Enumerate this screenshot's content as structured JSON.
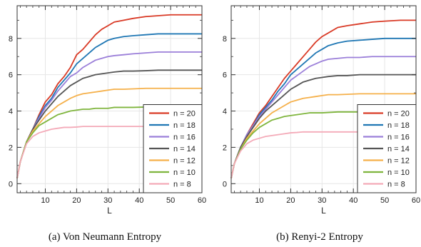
{
  "chart_data": [
    {
      "type": "line",
      "caption": "(a) Von Neumann Entropy",
      "xlabel": "L",
      "ylabel": "",
      "xlim": [
        1,
        60
      ],
      "ylim": [
        -0.5,
        9.8
      ],
      "xticks": [
        10,
        20,
        30,
        40,
        50,
        60
      ],
      "yticks": [
        0,
        2,
        4,
        6,
        8
      ],
      "grid": true,
      "legend_position": "bottom-right",
      "series": [
        {
          "name": "n = 20",
          "color": "#d93a26",
          "x": [
            1,
            2,
            4,
            6,
            8,
            10,
            12,
            14,
            16,
            18,
            20,
            22,
            24,
            26,
            28,
            30,
            32,
            35,
            38,
            42,
            46,
            50,
            55,
            60
          ],
          "y": [
            0.3,
            1.2,
            2.3,
            3.0,
            3.8,
            4.5,
            4.9,
            5.5,
            5.9,
            6.4,
            7.1,
            7.4,
            7.8,
            8.2,
            8.5,
            8.7,
            8.9,
            9.0,
            9.1,
            9.2,
            9.25,
            9.3,
            9.3,
            9.3
          ]
        },
        {
          "name": "n = 18",
          "color": "#1f77b4",
          "x": [
            1,
            2,
            4,
            6,
            8,
            10,
            12,
            14,
            16,
            18,
            20,
            22,
            24,
            26,
            28,
            30,
            32,
            35,
            38,
            42,
            46,
            50,
            55,
            60
          ],
          "y": [
            0.3,
            1.2,
            2.3,
            3.0,
            3.7,
            4.3,
            4.7,
            5.3,
            5.7,
            6.1,
            6.6,
            6.9,
            7.2,
            7.5,
            7.7,
            7.9,
            8.0,
            8.1,
            8.15,
            8.2,
            8.25,
            8.25,
            8.25,
            8.25
          ]
        },
        {
          "name": "n = 16",
          "color": "#9b7fd9",
          "x": [
            1,
            2,
            4,
            6,
            8,
            10,
            12,
            14,
            16,
            18,
            20,
            22,
            24,
            26,
            28,
            30,
            32,
            35,
            38,
            42,
            46,
            50,
            55,
            60
          ],
          "y": [
            0.3,
            1.2,
            2.3,
            3.0,
            3.6,
            4.2,
            4.6,
            5.1,
            5.5,
            5.9,
            6.1,
            6.4,
            6.6,
            6.8,
            6.9,
            7.0,
            7.05,
            7.1,
            7.15,
            7.2,
            7.25,
            7.25,
            7.25,
            7.25
          ]
        },
        {
          "name": "n = 14",
          "color": "#555555",
          "x": [
            1,
            2,
            4,
            6,
            8,
            10,
            12,
            14,
            16,
            18,
            20,
            22,
            24,
            26,
            28,
            30,
            32,
            35,
            38,
            42,
            46,
            50,
            55,
            60
          ],
          "y": [
            0.3,
            1.2,
            2.3,
            3.0,
            3.5,
            4.0,
            4.4,
            4.8,
            5.1,
            5.4,
            5.6,
            5.8,
            5.9,
            6.0,
            6.05,
            6.1,
            6.15,
            6.2,
            6.2,
            6.22,
            6.25,
            6.25,
            6.25,
            6.25
          ]
        },
        {
          "name": "n = 12",
          "color": "#f5b04a",
          "x": [
            1,
            2,
            4,
            6,
            8,
            10,
            12,
            14,
            16,
            18,
            20,
            22,
            24,
            26,
            28,
            30,
            32,
            35,
            38,
            42,
            46,
            50,
            55,
            60
          ],
          "y": [
            0.3,
            1.2,
            2.3,
            2.9,
            3.3,
            3.7,
            4.0,
            4.3,
            4.5,
            4.7,
            4.85,
            4.95,
            5.0,
            5.05,
            5.1,
            5.15,
            5.2,
            5.2,
            5.22,
            5.25,
            5.25,
            5.25,
            5.25,
            5.25
          ]
        },
        {
          "name": "n = 10",
          "color": "#7fb53d",
          "x": [
            1,
            2,
            4,
            6,
            8,
            10,
            12,
            14,
            16,
            18,
            20,
            22,
            24,
            26,
            28,
            30,
            32,
            35,
            38,
            42,
            46,
            50,
            55,
            60
          ],
          "y": [
            0.3,
            1.2,
            2.3,
            2.8,
            3.2,
            3.4,
            3.6,
            3.8,
            3.9,
            4.0,
            4.05,
            4.1,
            4.1,
            4.15,
            4.15,
            4.15,
            4.2,
            4.2,
            4.2,
            4.22,
            4.22,
            4.22,
            4.22,
            4.22
          ]
        },
        {
          "name": "n = 8",
          "color": "#f4aab8",
          "x": [
            1,
            2,
            4,
            6,
            8,
            10,
            12,
            14,
            16,
            18,
            20,
            22,
            24,
            26,
            28,
            30,
            32,
            35,
            38,
            42,
            46,
            50,
            55,
            60
          ],
          "y": [
            0.3,
            1.2,
            2.2,
            2.6,
            2.8,
            2.9,
            3.0,
            3.05,
            3.1,
            3.1,
            3.12,
            3.15,
            3.15,
            3.15,
            3.15,
            3.15,
            3.15,
            3.15,
            3.15,
            3.15,
            3.15,
            3.15,
            3.15,
            3.15
          ]
        }
      ]
    },
    {
      "type": "line",
      "caption": "(b) Renyi-2 Entropy",
      "xlabel": "L",
      "ylabel": "",
      "xlim": [
        1,
        60
      ],
      "ylim": [
        -0.5,
        9.8
      ],
      "xticks": [
        10,
        20,
        30,
        40,
        50,
        60
      ],
      "yticks": [
        0,
        2,
        4,
        6,
        8
      ],
      "grid": true,
      "legend_position": "bottom-right",
      "series": [
        {
          "name": "n = 20",
          "color": "#d93a26",
          "x": [
            1,
            2,
            4,
            6,
            8,
            10,
            12,
            14,
            16,
            18,
            20,
            22,
            24,
            26,
            28,
            30,
            32,
            35,
            38,
            42,
            46,
            50,
            55,
            60
          ],
          "y": [
            0.3,
            1.1,
            2.0,
            2.7,
            3.3,
            3.9,
            4.3,
            4.8,
            5.3,
            5.8,
            6.2,
            6.6,
            7.0,
            7.4,
            7.8,
            8.1,
            8.3,
            8.6,
            8.7,
            8.8,
            8.9,
            8.95,
            9.0,
            9.0
          ]
        },
        {
          "name": "n = 18",
          "color": "#1f77b4",
          "x": [
            1,
            2,
            4,
            6,
            8,
            10,
            12,
            14,
            16,
            18,
            20,
            22,
            24,
            26,
            28,
            30,
            32,
            35,
            38,
            42,
            46,
            50,
            55,
            60
          ],
          "y": [
            0.3,
            1.1,
            2.0,
            2.7,
            3.2,
            3.8,
            4.2,
            4.6,
            5.1,
            5.5,
            6.0,
            6.3,
            6.6,
            6.9,
            7.2,
            7.4,
            7.6,
            7.75,
            7.85,
            7.9,
            7.95,
            8.0,
            8.0,
            8.0
          ]
        },
        {
          "name": "n = 16",
          "color": "#9b7fd9",
          "x": [
            1,
            2,
            4,
            6,
            8,
            10,
            12,
            14,
            16,
            18,
            20,
            22,
            24,
            26,
            28,
            30,
            32,
            35,
            38,
            42,
            46,
            50,
            55,
            60
          ],
          "y": [
            0.3,
            1.1,
            2.0,
            2.7,
            3.2,
            3.7,
            4.1,
            4.5,
            4.9,
            5.3,
            5.7,
            5.95,
            6.2,
            6.45,
            6.6,
            6.75,
            6.85,
            6.9,
            6.95,
            6.95,
            7.0,
            7.0,
            7.0,
            7.0
          ]
        },
        {
          "name": "n = 14",
          "color": "#555555",
          "x": [
            1,
            2,
            4,
            6,
            8,
            10,
            12,
            14,
            16,
            18,
            20,
            22,
            24,
            26,
            28,
            30,
            32,
            35,
            38,
            42,
            46,
            50,
            55,
            60
          ],
          "y": [
            0.3,
            1.1,
            2.0,
            2.6,
            3.1,
            3.6,
            4.0,
            4.3,
            4.6,
            4.9,
            5.2,
            5.4,
            5.6,
            5.7,
            5.8,
            5.85,
            5.9,
            5.95,
            5.95,
            6.0,
            6.0,
            6.0,
            6.0,
            6.0
          ]
        },
        {
          "name": "n = 12",
          "color": "#f5b04a",
          "x": [
            1,
            2,
            4,
            6,
            8,
            10,
            12,
            14,
            16,
            18,
            20,
            22,
            24,
            26,
            28,
            30,
            32,
            35,
            38,
            42,
            46,
            50,
            55,
            60
          ],
          "y": [
            0.3,
            1.1,
            1.9,
            2.5,
            2.9,
            3.3,
            3.6,
            3.9,
            4.1,
            4.3,
            4.5,
            4.6,
            4.7,
            4.75,
            4.8,
            4.85,
            4.9,
            4.9,
            4.92,
            4.95,
            4.95,
            4.95,
            4.95,
            4.95
          ]
        },
        {
          "name": "n = 10",
          "color": "#7fb53d",
          "x": [
            1,
            2,
            4,
            6,
            8,
            10,
            12,
            14,
            16,
            18,
            20,
            22,
            24,
            26,
            28,
            30,
            32,
            35,
            38,
            42,
            46,
            50,
            55,
            60
          ],
          "y": [
            0.3,
            1.1,
            1.9,
            2.4,
            2.8,
            3.1,
            3.3,
            3.5,
            3.6,
            3.7,
            3.75,
            3.8,
            3.85,
            3.9,
            3.9,
            3.9,
            3.92,
            3.95,
            3.95,
            3.95,
            3.95,
            3.95,
            3.95,
            3.95
          ]
        },
        {
          "name": "n = 8",
          "color": "#f4aab8",
          "x": [
            1,
            2,
            4,
            6,
            8,
            10,
            12,
            14,
            16,
            18,
            20,
            22,
            24,
            26,
            28,
            30,
            32,
            35,
            38,
            42,
            46,
            50,
            55,
            60
          ],
          "y": [
            0.3,
            1.1,
            1.8,
            2.2,
            2.4,
            2.5,
            2.6,
            2.65,
            2.7,
            2.75,
            2.8,
            2.82,
            2.85,
            2.85,
            2.85,
            2.85,
            2.85,
            2.85,
            2.85,
            2.85,
            2.85,
            2.85,
            2.85,
            2.85
          ]
        }
      ]
    }
  ]
}
